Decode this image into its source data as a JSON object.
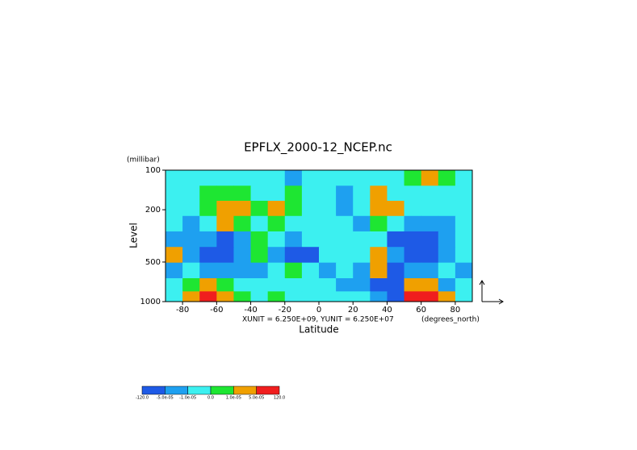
{
  "chart_data": {
    "type": "contour",
    "title": "EPFLX_2000-12_NCEP.nc",
    "y_unit_label": "(millibar)",
    "y_label": "Level",
    "x_label": "Latitude",
    "x_unit_label": "(degrees_north)",
    "annotation": "XUNIT = 6.250E+09, YUNIT = 6.250E+07",
    "xlim": [
      -90,
      90
    ],
    "xticks": [
      -80,
      -60,
      -40,
      -20,
      0,
      20,
      40,
      60,
      80
    ],
    "ylim": [
      1000,
      100
    ],
    "yticks": [
      100,
      200,
      500,
      1000
    ],
    "log_y": true,
    "x": [
      -85,
      -75,
      -65,
      -55,
      -45,
      -35,
      -25,
      -15,
      -5,
      5,
      15,
      25,
      35,
      45,
      55,
      65,
      75,
      85
    ],
    "y": [
      115,
      150,
      195,
      255,
      335,
      440,
      580,
      760,
      920
    ],
    "levels": [
      {
        "value": -120,
        "label": "-120.0"
      },
      {
        "value": -5e-05,
        "label": "-5.0e-05"
      },
      {
        "value": -1e-05,
        "label": "-1.0e-05"
      },
      {
        "value": 0,
        "label": "0.0"
      },
      {
        "value": 1e-05,
        "label": "1.0e-05"
      },
      {
        "value": 5e-05,
        "label": "5.0e-05"
      },
      {
        "value": 120,
        "label": "120.0"
      }
    ],
    "colors": [
      "#1e5ae6",
      "#1ea0f0",
      "#3cf0f0",
      "#1ee632",
      "#f0a000",
      "#f01e1e"
    ],
    "z": [
      [
        -5e-06,
        -5e-06,
        -5e-06,
        -5e-06,
        -5e-06,
        -5e-06,
        -5e-06,
        -3e-05,
        -5e-06,
        -5e-06,
        -5e-06,
        -5e-06,
        -5e-06,
        -5e-06,
        5e-06,
        3e-05,
        5e-06,
        -5e-06
      ],
      [
        -5e-06,
        -5e-06,
        5e-06,
        5e-06,
        5e-06,
        -5e-06,
        -5e-06,
        5e-06,
        -5e-06,
        -5e-06,
        -3e-05,
        -5e-06,
        3e-05,
        -5e-06,
        -5e-06,
        -5e-06,
        -5e-06,
        -5e-06
      ],
      [
        -5e-06,
        -5e-06,
        5e-06,
        3e-05,
        3e-05,
        5e-06,
        3e-05,
        5e-06,
        -5e-06,
        -5e-06,
        -3e-05,
        -5e-06,
        3e-05,
        3e-05,
        -5e-06,
        -5e-06,
        -5e-06,
        -5e-06
      ],
      [
        -5e-06,
        -3e-05,
        -5e-06,
        3e-05,
        5e-06,
        -5e-06,
        5e-06,
        -5e-06,
        -5e-06,
        -5e-06,
        -5e-06,
        -3e-05,
        5e-06,
        -5e-06,
        -3e-05,
        -3e-05,
        -3e-05,
        -5e-06
      ],
      [
        -3e-05,
        -3e-05,
        -3e-05,
        -0.0001,
        -3e-05,
        5e-06,
        -5e-06,
        -3e-05,
        -5e-06,
        -5e-06,
        -5e-06,
        -5e-06,
        -5e-06,
        -0.0001,
        -0.0001,
        -0.0001,
        -3e-05,
        -5e-06
      ],
      [
        3e-05,
        -3e-05,
        -0.0001,
        -0.0001,
        -3e-05,
        5e-06,
        -3e-05,
        -0.0001,
        -0.0001,
        -5e-06,
        -5e-06,
        -5e-06,
        3e-05,
        -3e-05,
        -0.0001,
        -0.0001,
        -3e-05,
        -5e-06
      ],
      [
        -3e-05,
        -5e-06,
        -3e-05,
        -3e-05,
        -3e-05,
        -3e-05,
        -5e-06,
        5e-06,
        -5e-06,
        -3e-05,
        -5e-06,
        -3e-05,
        3e-05,
        -0.0001,
        -3e-05,
        -3e-05,
        -5e-06,
        -3e-05
      ],
      [
        -5e-06,
        5e-06,
        3e-05,
        5e-06,
        -5e-06,
        -5e-06,
        -5e-06,
        -5e-06,
        -5e-06,
        -5e-06,
        -3e-05,
        -3e-05,
        -0.0001,
        -0.0001,
        3e-05,
        3e-05,
        -3e-05,
        -5e-06
      ],
      [
        -5e-06,
        3e-05,
        0.0001,
        3e-05,
        5e-06,
        -5e-06,
        5e-06,
        -5e-06,
        -5e-06,
        -5e-06,
        -5e-06,
        -5e-06,
        -3e-05,
        -0.0001,
        0.0001,
        0.0001,
        3e-05,
        -5e-06
      ]
    ]
  }
}
